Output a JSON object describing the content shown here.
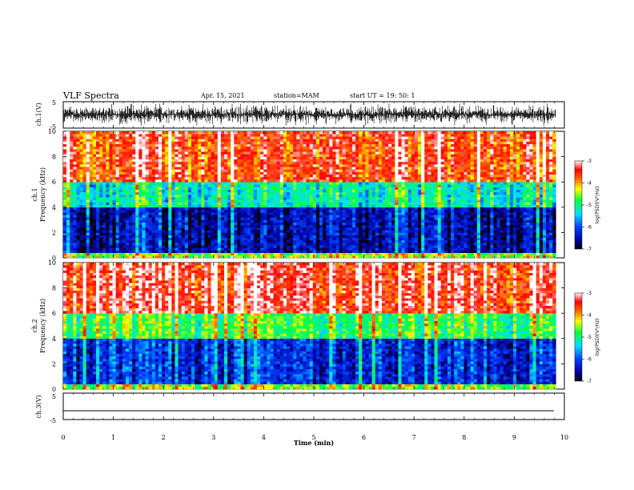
{
  "header": {
    "title": "VLF Spectra",
    "date": "Apr. 15, 2021",
    "station": "station=MAM",
    "start": "start  UT =   19: 50: 1"
  },
  "chart_data": [
    {
      "type": "line",
      "panel": "ch1-waveform",
      "ylabel": "ch.1(V)",
      "yticks": [
        "5",
        "-5"
      ],
      "ylim": [
        -5,
        5
      ],
      "description_visible": "dense noisy waveform, black"
    },
    {
      "type": "heatmap",
      "panel": "ch1-spectrogram",
      "ylabel_line1": "ch.1",
      "ylabel_line2": "Frequency (kHz)",
      "ylim": [
        0,
        10
      ],
      "yticks": [
        "0",
        "2",
        "4",
        "6",
        "8",
        "10"
      ],
      "colorbar": {
        "label": "log(PSD)(V²/Hz)",
        "range": [
          -7,
          -3
        ],
        "ticks": [
          "-3",
          "-4",
          "-5",
          "-6",
          "-7"
        ]
      },
      "bands_khz": [
        {
          "from": 0,
          "to": 0.5,
          "level": -4.5
        },
        {
          "from": 0.5,
          "to": 4.0,
          "level": -6.5
        },
        {
          "from": 4.0,
          "to": 6.0,
          "level": -5.2
        },
        {
          "from": 6.0,
          "to": 10.0,
          "level": -3.6
        }
      ]
    },
    {
      "type": "heatmap",
      "panel": "ch2-spectrogram",
      "ylabel_line1": "ch.2",
      "ylabel_line2": "Frequency (kHz)",
      "ylim": [
        0,
        10
      ],
      "yticks": [
        "0",
        "2",
        "4",
        "6",
        "8",
        "10"
      ],
      "colorbar": {
        "label": "log(PSD)(V²/Hz)",
        "range": [
          -7,
          -3
        ],
        "ticks": [
          "-3",
          "-4",
          "-5",
          "-6",
          "-7"
        ]
      },
      "bands_khz": [
        {
          "from": 0,
          "to": 0.5,
          "level": -4.5
        },
        {
          "from": 0.5,
          "to": 4.0,
          "level": -6.2
        },
        {
          "from": 4.0,
          "to": 6.0,
          "level": -4.8
        },
        {
          "from": 6.0,
          "to": 10.0,
          "level": -3.4
        }
      ]
    },
    {
      "type": "line",
      "panel": "ch3-waveform",
      "ylabel": "ch.3(V)",
      "yticks": [
        "5",
        "-5"
      ],
      "ylim": [
        -5,
        5
      ],
      "constant_value": -2
    }
  ],
  "xaxis": {
    "label": "Time  (min)",
    "ticks": [
      "0",
      "1",
      "2",
      "3",
      "4",
      "5",
      "6",
      "7",
      "8",
      "9",
      "10"
    ],
    "range": [
      0,
      10
    ],
    "data_end": 9.83
  },
  "colors": {
    "scale": [
      "#000080",
      "#0000ff",
      "#00a0ff",
      "#00ffff",
      "#00ff40",
      "#ffff00",
      "#ff8000",
      "#ff0000",
      "#ff8080",
      "#ffffff"
    ]
  }
}
